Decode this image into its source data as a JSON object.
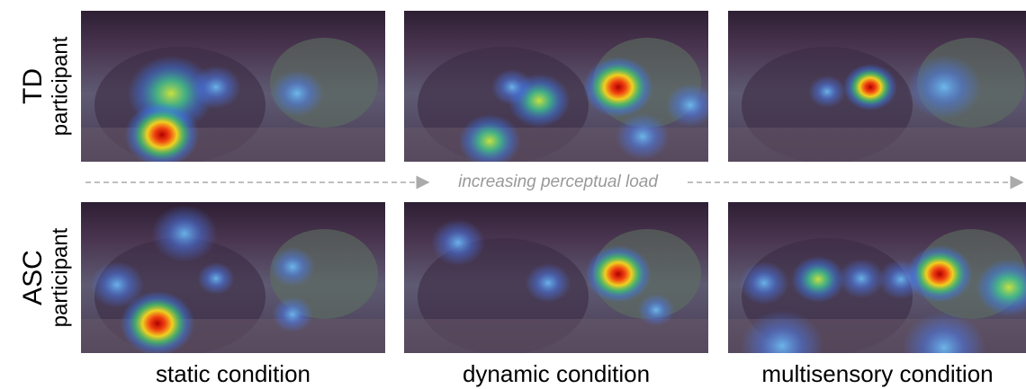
{
  "rows": [
    {
      "label": "TD",
      "sublabel": "participant"
    },
    {
      "label": "ASC",
      "sublabel": "participant"
    }
  ],
  "arrow_label": "increasing perceptual load",
  "columns": [
    "static condition",
    "dynamic condition",
    "multisensory condition"
  ]
}
